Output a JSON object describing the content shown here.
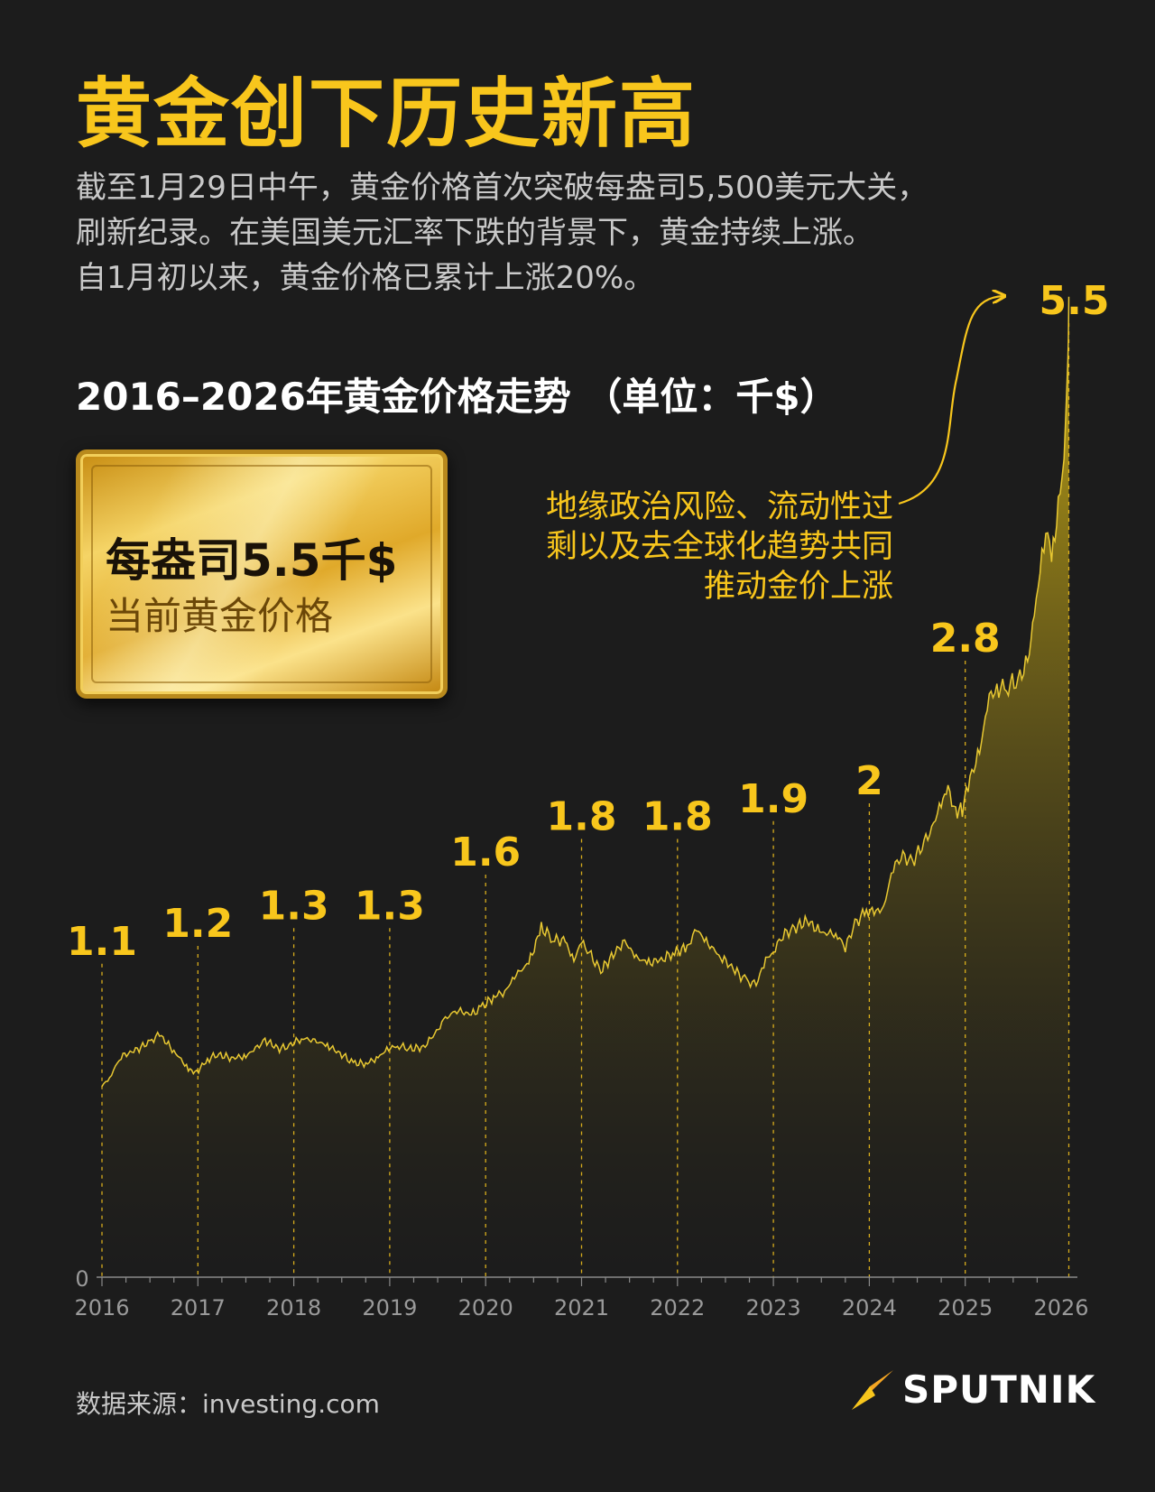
{
  "header": {
    "title": "黄金创下历史新高",
    "subtitle_lines": [
      "截至1月29日中午，黄金价格首次突破每盎司5,500美元大关，",
      "刷新纪录。在美国美元汇率下跌的背景下，黄金持续上涨。",
      "自1月初以来，黄金价格已累计上涨20%。"
    ]
  },
  "chart_heading": "2016–2026年黄金价格走势 （单位：千$）",
  "gold_bar": {
    "price_label": "每盎司5.5千$",
    "caption": "当前黄金价格"
  },
  "annotation_lines": [
    "地缘政治风险、流动性过",
    "剩以及去全球化趋势共同",
    "推动金价上涨"
  ],
  "colors": {
    "accent": "#f8c61c",
    "background": "#1c1c1c",
    "text_muted": "#c9c9c9",
    "area_top": "#c9ab16",
    "area_bottom": "#1c1c1c"
  },
  "chart_data": {
    "type": "area",
    "x_ticks": [
      "2016",
      "2017",
      "2018",
      "2019",
      "2020",
      "2021",
      "2022",
      "2023",
      "2024",
      "2025",
      "2026"
    ],
    "y_tick": "0",
    "ylim": [
      0,
      5.6
    ],
    "year_labels": [
      {
        "year": 2016,
        "value": 1.1,
        "label": "1.1"
      },
      {
        "year": 2017,
        "value": 1.2,
        "label": "1.2"
      },
      {
        "year": 2018,
        "value": 1.3,
        "label": "1.3"
      },
      {
        "year": 2019,
        "value": 1.3,
        "label": "1.3"
      },
      {
        "year": 2020,
        "value": 1.6,
        "label": "1.6"
      },
      {
        "year": 2021,
        "value": 1.8,
        "label": "1.8"
      },
      {
        "year": 2022,
        "value": 1.8,
        "label": "1.8"
      },
      {
        "year": 2023,
        "value": 1.9,
        "label": "1.9"
      },
      {
        "year": 2024,
        "value": 2.0,
        "label": "2"
      },
      {
        "year": 2025,
        "value": 2.8,
        "label": "2.8"
      },
      {
        "year": 2026.08,
        "value": 5.5,
        "label": "5.5"
      }
    ],
    "points": [
      [
        2016.0,
        1.07
      ],
      [
        2016.08,
        1.12
      ],
      [
        2016.2,
        1.24
      ],
      [
        2016.35,
        1.27
      ],
      [
        2016.52,
        1.33
      ],
      [
        2016.6,
        1.36
      ],
      [
        2016.75,
        1.27
      ],
      [
        2016.9,
        1.17
      ],
      [
        2016.97,
        1.14
      ],
      [
        2017.1,
        1.22
      ],
      [
        2017.2,
        1.25
      ],
      [
        2017.35,
        1.23
      ],
      [
        2017.5,
        1.24
      ],
      [
        2017.6,
        1.28
      ],
      [
        2017.7,
        1.33
      ],
      [
        2017.85,
        1.28
      ],
      [
        2017.95,
        1.3
      ],
      [
        2018.08,
        1.34
      ],
      [
        2018.2,
        1.33
      ],
      [
        2018.35,
        1.3
      ],
      [
        2018.5,
        1.25
      ],
      [
        2018.62,
        1.2
      ],
      [
        2018.75,
        1.2
      ],
      [
        2018.88,
        1.23
      ],
      [
        2018.97,
        1.28
      ],
      [
        2019.1,
        1.3
      ],
      [
        2019.2,
        1.28
      ],
      [
        2019.35,
        1.29
      ],
      [
        2019.45,
        1.35
      ],
      [
        2019.58,
        1.45
      ],
      [
        2019.7,
        1.5
      ],
      [
        2019.85,
        1.47
      ],
      [
        2019.97,
        1.52
      ],
      [
        2020.1,
        1.58
      ],
      [
        2020.2,
        1.6
      ],
      [
        2020.3,
        1.69
      ],
      [
        2020.45,
        1.76
      ],
      [
        2020.58,
        1.96
      ],
      [
        2020.7,
        1.9
      ],
      [
        2020.83,
        1.88
      ],
      [
        2020.92,
        1.78
      ],
      [
        2021.0,
        1.88
      ],
      [
        2021.1,
        1.8
      ],
      [
        2021.2,
        1.72
      ],
      [
        2021.35,
        1.82
      ],
      [
        2021.45,
        1.89
      ],
      [
        2021.55,
        1.8
      ],
      [
        2021.7,
        1.76
      ],
      [
        2021.85,
        1.79
      ],
      [
        2021.97,
        1.82
      ],
      [
        2022.1,
        1.85
      ],
      [
        2022.2,
        1.95
      ],
      [
        2022.3,
        1.88
      ],
      [
        2022.45,
        1.8
      ],
      [
        2022.6,
        1.72
      ],
      [
        2022.72,
        1.66
      ],
      [
        2022.82,
        1.64
      ],
      [
        2022.92,
        1.78
      ],
      [
        2023.0,
        1.83
      ],
      [
        2023.1,
        1.92
      ],
      [
        2023.2,
        1.95
      ],
      [
        2023.35,
        2.0
      ],
      [
        2023.5,
        1.93
      ],
      [
        2023.65,
        1.93
      ],
      [
        2023.75,
        1.85
      ],
      [
        2023.85,
        1.98
      ],
      [
        2023.97,
        2.06
      ],
      [
        2024.05,
        2.04
      ],
      [
        2024.15,
        2.08
      ],
      [
        2024.25,
        2.3
      ],
      [
        2024.35,
        2.36
      ],
      [
        2024.45,
        2.33
      ],
      [
        2024.55,
        2.42
      ],
      [
        2024.65,
        2.52
      ],
      [
        2024.75,
        2.66
      ],
      [
        2024.82,
        2.73
      ],
      [
        2024.9,
        2.62
      ],
      [
        2024.97,
        2.62
      ],
      [
        2025.05,
        2.8
      ],
      [
        2025.15,
        2.95
      ],
      [
        2025.25,
        3.25
      ],
      [
        2025.33,
        3.3
      ],
      [
        2025.45,
        3.32
      ],
      [
        2025.55,
        3.35
      ],
      [
        2025.65,
        3.45
      ],
      [
        2025.72,
        3.7
      ],
      [
        2025.8,
        4.05
      ],
      [
        2025.86,
        4.25
      ],
      [
        2025.9,
        4.0
      ],
      [
        2025.97,
        4.35
      ],
      [
        2026.03,
        4.6
      ],
      [
        2026.07,
        5.1
      ],
      [
        2026.08,
        5.5
      ]
    ]
  },
  "source": "数据来源：investing.com",
  "logo_text": "SPUTNIK"
}
